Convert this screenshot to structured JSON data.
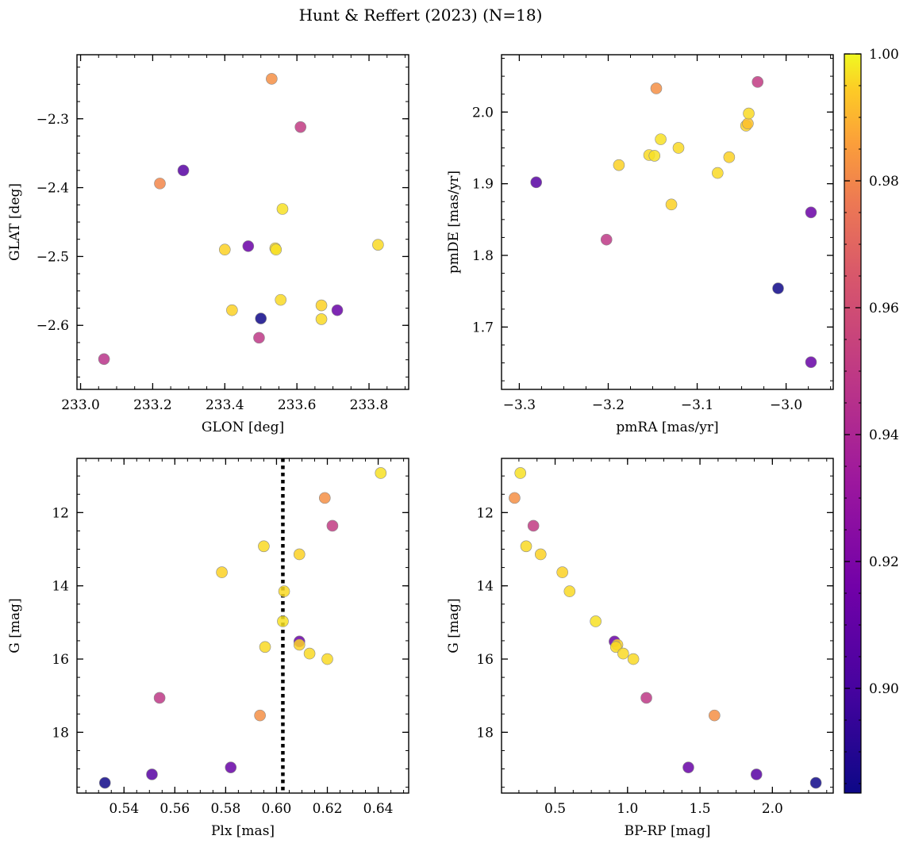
{
  "title": "Hunt & Reffert (2023) (N=18)",
  "colorbar": {
    "ticks": [
      "0.90",
      "0.92",
      "0.94",
      "0.96",
      "0.98",
      "1.00"
    ],
    "tick_values": [
      0.9,
      0.92,
      0.94,
      0.96,
      0.98,
      1.0
    ],
    "range": [
      0.8835,
      1.0
    ],
    "colormap": "plasma"
  },
  "chart_data": [
    {
      "type": "scatter",
      "xlabel": "GLON [deg]",
      "ylabel": "GLAT [deg]",
      "xlim": [
        232.99,
        233.91
      ],
      "ylim": [
        -2.693,
        -2.207
      ],
      "xticks": [
        233.0,
        233.2,
        233.4,
        233.6,
        233.8
      ],
      "xtick_labels": [
        "233.0",
        "233.2",
        "233.4",
        "233.6",
        "233.8"
      ],
      "yticks": [
        -2.3,
        -2.4,
        -2.5,
        -2.6
      ],
      "ytick_labels": [
        "−2.3",
        "−2.4",
        "−2.5",
        "−2.6"
      ],
      "points": [
        {
          "x": 233.065,
          "y": -2.649,
          "c": 0.947
        },
        {
          "x": 233.22,
          "y": -2.394,
          "c": 0.98
        },
        {
          "x": 233.285,
          "y": -2.375,
          "c": 0.906
        },
        {
          "x": 233.4,
          "y": -2.49,
          "c": 0.995
        },
        {
          "x": 233.42,
          "y": -2.578,
          "c": 0.995
        },
        {
          "x": 233.465,
          "y": -2.485,
          "c": 0.913
        },
        {
          "x": 233.495,
          "y": -2.618,
          "c": 0.949
        },
        {
          "x": 233.5,
          "y": -2.59,
          "c": 0.884
        },
        {
          "x": 233.53,
          "y": -2.242,
          "c": 0.982
        },
        {
          "x": 233.54,
          "y": -2.488,
          "c": 0.996
        },
        {
          "x": 233.542,
          "y": -2.49,
          "c": 0.997
        },
        {
          "x": 233.555,
          "y": -2.563,
          "c": 0.996
        },
        {
          "x": 233.56,
          "y": -2.431,
          "c": 0.997
        },
        {
          "x": 233.61,
          "y": -2.312,
          "c": 0.951
        },
        {
          "x": 233.668,
          "y": -2.571,
          "c": 0.995
        },
        {
          "x": 233.668,
          "y": -2.591,
          "c": 0.996
        },
        {
          "x": 233.712,
          "y": -2.578,
          "c": 0.912
        },
        {
          "x": 233.825,
          "y": -2.483,
          "c": 0.996
        }
      ]
    },
    {
      "type": "scatter",
      "xlabel": "pmRA [mas/yr]",
      "ylabel": "pmDE [mas/yr]",
      "xlim": [
        -3.32,
        -2.947
      ],
      "ylim": [
        1.613,
        2.08
      ],
      "xticks": [
        -3.3,
        -3.2,
        -3.1,
        -3.0
      ],
      "xtick_labels": [
        "−3.3",
        "−3.2",
        "−3.1",
        "−3.0"
      ],
      "yticks": [
        1.7,
        1.8,
        1.9,
        2.0
      ],
      "ytick_labels": [
        "1.7",
        "1.8",
        "1.9",
        "2.0"
      ],
      "points": [
        {
          "x": -3.281,
          "y": 1.902,
          "c": 0.906
        },
        {
          "x": -3.202,
          "y": 1.822,
          "c": 0.949
        },
        {
          "x": -3.188,
          "y": 1.926,
          "c": 0.995
        },
        {
          "x": -3.154,
          "y": 1.94,
          "c": 0.996
        },
        {
          "x": -3.148,
          "y": 1.939,
          "c": 0.997
        },
        {
          "x": -3.146,
          "y": 2.033,
          "c": 0.982
        },
        {
          "x": -3.141,
          "y": 1.962,
          "c": 0.997
        },
        {
          "x": -3.129,
          "y": 1.871,
          "c": 0.995
        },
        {
          "x": -3.121,
          "y": 1.95,
          "c": 0.996
        },
        {
          "x": -3.077,
          "y": 1.915,
          "c": 0.996
        },
        {
          "x": -3.064,
          "y": 1.937,
          "c": 0.995
        },
        {
          "x": -3.045,
          "y": 1.981,
          "c": 0.995
        },
        {
          "x": -3.043,
          "y": 1.984,
          "c": 0.992
        },
        {
          "x": -3.042,
          "y": 1.998,
          "c": 0.996
        },
        {
          "x": -3.032,
          "y": 2.042,
          "c": 0.951
        },
        {
          "x": -3.009,
          "y": 1.754,
          "c": 0.884
        },
        {
          "x": -2.972,
          "y": 1.86,
          "c": 0.913
        },
        {
          "x": -2.972,
          "y": 1.651,
          "c": 0.912
        }
      ]
    },
    {
      "type": "scatter",
      "xlabel": "Plx [mas]",
      "ylabel": "G [mag]",
      "xlim": [
        0.5215,
        0.652
      ],
      "ylim": [
        19.66,
        10.52
      ],
      "xticks": [
        0.54,
        0.56,
        0.58,
        0.6,
        0.62,
        0.64
      ],
      "xtick_labels": [
        "0.54",
        "0.56",
        "0.58",
        "0.60",
        "0.62",
        "0.64"
      ],
      "yticks": [
        12,
        14,
        16,
        18
      ],
      "ytick_labels": [
        "12",
        "14",
        "16",
        "18"
      ],
      "vline": {
        "x": 0.6025,
        "style": "dotted"
      },
      "points": [
        {
          "x": 0.641,
          "y": 10.92,
          "c": 0.997
        },
        {
          "x": 0.619,
          "y": 11.6,
          "c": 0.982
        },
        {
          "x": 0.622,
          "y": 12.36,
          "c": 0.951
        },
        {
          "x": 0.595,
          "y": 12.92,
          "c": 0.996
        },
        {
          "x": 0.609,
          "y": 13.14,
          "c": 0.995
        },
        {
          "x": 0.5785,
          "y": 13.63,
          "c": 0.995
        },
        {
          "x": 0.603,
          "y": 14.15,
          "c": 0.996
        },
        {
          "x": 0.6025,
          "y": 14.97,
          "c": 0.997
        },
        {
          "x": 0.609,
          "y": 15.52,
          "c": 0.913
        },
        {
          "x": 0.609,
          "y": 15.61,
          "c": 0.995
        },
        {
          "x": 0.5955,
          "y": 15.67,
          "c": 0.996
        },
        {
          "x": 0.613,
          "y": 15.85,
          "c": 0.996
        },
        {
          "x": 0.62,
          "y": 16.0,
          "c": 0.996
        },
        {
          "x": 0.554,
          "y": 17.06,
          "c": 0.949
        },
        {
          "x": 0.5935,
          "y": 17.54,
          "c": 0.982
        },
        {
          "x": 0.582,
          "y": 18.96,
          "c": 0.912
        },
        {
          "x": 0.551,
          "y": 19.15,
          "c": 0.906
        },
        {
          "x": 0.5325,
          "y": 19.38,
          "c": 0.884
        }
      ]
    },
    {
      "type": "scatter",
      "xlabel": "BP-RP [mag]",
      "ylabel": "G [mag]",
      "xlim": [
        0.13,
        2.42
      ],
      "ylim": [
        19.66,
        10.52
      ],
      "xticks": [
        0.5,
        1.0,
        1.5,
        2.0
      ],
      "xtick_labels": [
        "0.5",
        "1.0",
        "1.5",
        "2.0"
      ],
      "yticks": [
        12,
        14,
        16,
        18
      ],
      "ytick_labels": [
        "12",
        "14",
        "16",
        "18"
      ],
      "points": [
        {
          "x": 0.26,
          "y": 10.92,
          "c": 0.997
        },
        {
          "x": 0.22,
          "y": 11.6,
          "c": 0.982
        },
        {
          "x": 0.35,
          "y": 12.36,
          "c": 0.951
        },
        {
          "x": 0.3,
          "y": 12.92,
          "c": 0.996
        },
        {
          "x": 0.4,
          "y": 13.14,
          "c": 0.995
        },
        {
          "x": 0.55,
          "y": 13.63,
          "c": 0.995
        },
        {
          "x": 0.6,
          "y": 14.15,
          "c": 0.996
        },
        {
          "x": 0.78,
          "y": 14.97,
          "c": 0.997
        },
        {
          "x": 0.91,
          "y": 15.52,
          "c": 0.913
        },
        {
          "x": 0.93,
          "y": 15.61,
          "c": 0.995
        },
        {
          "x": 0.92,
          "y": 15.67,
          "c": 0.996
        },
        {
          "x": 0.97,
          "y": 15.85,
          "c": 0.996
        },
        {
          "x": 1.04,
          "y": 16.0,
          "c": 0.996
        },
        {
          "x": 1.13,
          "y": 17.06,
          "c": 0.949
        },
        {
          "x": 1.6,
          "y": 17.54,
          "c": 0.982
        },
        {
          "x": 1.42,
          "y": 18.96,
          "c": 0.912
        },
        {
          "x": 1.89,
          "y": 19.15,
          "c": 0.906
        },
        {
          "x": 2.3,
          "y": 19.38,
          "c": 0.884
        }
      ]
    }
  ]
}
